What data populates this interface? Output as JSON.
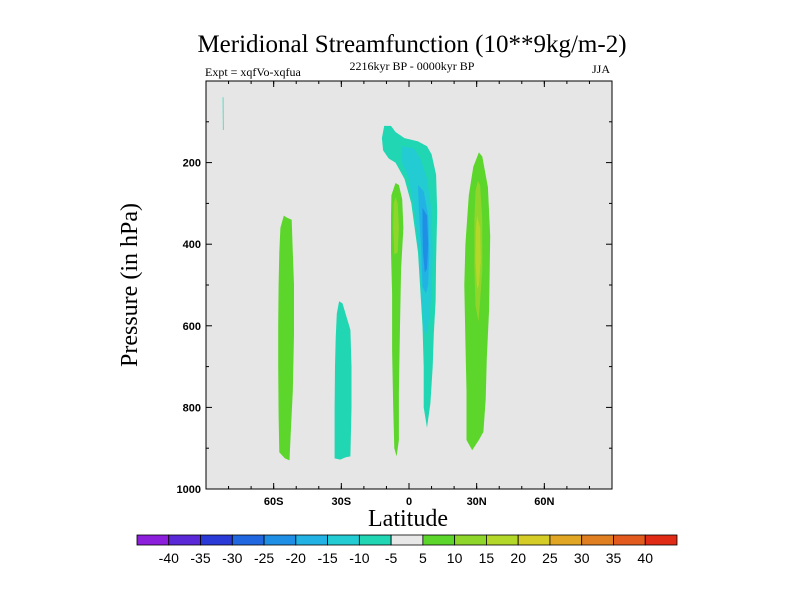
{
  "chart_data": {
    "type": "heatmap",
    "title": "Meridional Streamfunction (10**9kg/m-2)",
    "subtitle_left": "Expt = xqfVo-xqfua",
    "subtitle_center": "2216kyr BP - 0000kyr BP",
    "subtitle_right": "JJA",
    "xlabel": "Latitude",
    "ylabel": "Pressure (in hPa)",
    "xlim": [
      -90,
      90
    ],
    "ylim": [
      1000,
      0
    ],
    "x_ticks": [
      {
        "value": -60,
        "label": "60S"
      },
      {
        "value": -30,
        "label": "30S"
      },
      {
        "value": 0,
        "label": "0"
      },
      {
        "value": 30,
        "label": "30N"
      },
      {
        "value": 60,
        "label": "60N"
      }
    ],
    "y_ticks": [
      {
        "value": 200,
        "label": "200"
      },
      {
        "value": 400,
        "label": "400"
      },
      {
        "value": 600,
        "label": "600"
      },
      {
        "value": 800,
        "label": "800"
      },
      {
        "value": 1000,
        "label": "1000"
      }
    ],
    "colorbar": {
      "labels": [
        "-40",
        "-35",
        "-30",
        "-25",
        "-20",
        "-15",
        "-10",
        "-5",
        "5",
        "10",
        "15",
        "20",
        "25",
        "30",
        "35",
        "40"
      ],
      "colors": [
        "#8c1fdc",
        "#5a28d6",
        "#2a3ad6",
        "#2167e0",
        "#1f8fe6",
        "#22b3e4",
        "#22ccd2",
        "#21d6b2",
        "#e8e8e8",
        "#5cd62b",
        "#8fd62b",
        "#b4d82a",
        "#d6cc27",
        "#e0a624",
        "#e07f22",
        "#e25a1e",
        "#e02b16"
      ]
    },
    "contour_regions": [
      {
        "name": "cell-60S-positive",
        "level": "5 to 10",
        "color": "#5cd62b",
        "outline": [
          [
            -55.5,
            330
          ],
          [
            -54,
            335
          ],
          [
            -52,
            340
          ],
          [
            -51.5,
            420
          ],
          [
            -51,
            500
          ],
          [
            -51,
            620
          ],
          [
            -51.5,
            760
          ],
          [
            -52.5,
            870
          ],
          [
            -53,
            930
          ],
          [
            -55,
            925
          ],
          [
            -57.5,
            910
          ],
          [
            -57.8,
            820
          ],
          [
            -58,
            700
          ],
          [
            -58,
            600
          ],
          [
            -57.8,
            500
          ],
          [
            -57.5,
            420
          ],
          [
            -57,
            360
          ]
        ]
      },
      {
        "name": "cell-30S-negative",
        "level": "-5 to -10",
        "color": "#21d6b2",
        "outline": [
          [
            -31,
            540
          ],
          [
            -29.5,
            545
          ],
          [
            -26,
            610
          ],
          [
            -25.5,
            700
          ],
          [
            -25.5,
            800
          ],
          [
            -26,
            920
          ],
          [
            -28,
            922
          ],
          [
            -30.5,
            928
          ],
          [
            -33,
            925
          ],
          [
            -33,
            800
          ],
          [
            -32.8,
            700
          ],
          [
            -32.5,
            630
          ],
          [
            -32,
            570
          ]
        ]
      },
      {
        "name": "cell-5S-positive",
        "level": "5 to 10",
        "color": "#5cd62b",
        "outline": [
          [
            -6,
            250
          ],
          [
            -4.5,
            255
          ],
          [
            -3,
            290
          ],
          [
            -2.5,
            360
          ],
          [
            -3.5,
            460
          ],
          [
            -4,
            600
          ],
          [
            -4.5,
            760
          ],
          [
            -4.5,
            880
          ],
          [
            -5.5,
            920
          ],
          [
            -6.5,
            900
          ],
          [
            -7,
            800
          ],
          [
            -7.5,
            660
          ],
          [
            -7.5,
            520
          ],
          [
            -8,
            420
          ],
          [
            -8,
            330
          ],
          [
            -7.8,
            280
          ]
        ]
      },
      {
        "name": "cell-5S-positive-core",
        "level": "10 to 15",
        "color": "#8fd62b",
        "outline": [
          [
            -6,
            285
          ],
          [
            -5,
            300
          ],
          [
            -4.5,
            360
          ],
          [
            -5,
            420
          ],
          [
            -6.5,
            425
          ],
          [
            -7,
            360
          ],
          [
            -6.8,
            300
          ]
        ]
      },
      {
        "name": "cell-eq-negative",
        "level": "-5 to -10",
        "color": "#21d6b2",
        "outline": [
          [
            -11,
            110
          ],
          [
            -8,
            110
          ],
          [
            -6,
            125
          ],
          [
            -2,
            140
          ],
          [
            4,
            148
          ],
          [
            8,
            160
          ],
          [
            10,
            180
          ],
          [
            12,
            230
          ],
          [
            12.5,
            320
          ],
          [
            12,
            440
          ],
          [
            11.8,
            540
          ],
          [
            11,
            620
          ],
          [
            10.5,
            700
          ],
          [
            9.5,
            790
          ],
          [
            8,
            850
          ],
          [
            6.5,
            800
          ],
          [
            6.5,
            700
          ],
          [
            6,
            600
          ],
          [
            4,
            420
          ],
          [
            1,
            300
          ],
          [
            -2,
            240
          ],
          [
            -6,
            200
          ],
          [
            -9,
            190
          ],
          [
            -11.5,
            170
          ],
          [
            -12,
            140
          ]
        ]
      },
      {
        "name": "cell-eq-negative-ring",
        "level": "-10 to -15",
        "color": "#22ccd2",
        "outline": [
          [
            -3,
            160
          ],
          [
            2,
            165
          ],
          [
            5,
            190
          ],
          [
            8,
            240
          ],
          [
            10,
            320
          ],
          [
            10.5,
            420
          ],
          [
            10,
            520
          ],
          [
            9,
            580
          ],
          [
            8,
            620
          ],
          [
            6.5,
            610
          ],
          [
            5.5,
            520
          ],
          [
            4.5,
            420
          ],
          [
            2.5,
            320
          ],
          [
            0,
            240
          ],
          [
            -3,
            200
          ]
        ]
      },
      {
        "name": "cell-eq-negative-inner",
        "level": "-15 to -20",
        "color": "#22b3e4",
        "outline": [
          [
            4,
            255
          ],
          [
            6.5,
            270
          ],
          [
            8.5,
            330
          ],
          [
            9,
            420
          ],
          [
            8.5,
            500
          ],
          [
            7.5,
            520
          ],
          [
            6,
            505
          ],
          [
            5.5,
            420
          ],
          [
            4.5,
            330
          ]
        ]
      },
      {
        "name": "cell-eq-negative-core",
        "level": "-20 to -25",
        "color": "#1f8fe6",
        "outline": [
          [
            6,
            310
          ],
          [
            8,
            330
          ],
          [
            8.5,
            400
          ],
          [
            8,
            460
          ],
          [
            7,
            470
          ],
          [
            6.2,
            420
          ],
          [
            6,
            360
          ]
        ]
      },
      {
        "name": "cell-30N-positive",
        "level": "5 to 10",
        "color": "#5cd62b",
        "outline": [
          [
            31,
            175
          ],
          [
            32.5,
            185
          ],
          [
            35,
            260
          ],
          [
            36,
            380
          ],
          [
            35.5,
            560
          ],
          [
            34.5,
            680
          ],
          [
            34,
            780
          ],
          [
            33,
            860
          ],
          [
            31,
            880
          ],
          [
            28,
            905
          ],
          [
            25.5,
            880
          ],
          [
            25.5,
            760
          ],
          [
            25,
            640
          ],
          [
            24.5,
            500
          ],
          [
            25,
            400
          ],
          [
            26.5,
            280
          ],
          [
            28.5,
            210
          ]
        ]
      },
      {
        "name": "cell-30N-positive-core",
        "level": "10 to 15",
        "color": "#8fd62b",
        "outline": [
          [
            30.5,
            245
          ],
          [
            31.5,
            255
          ],
          [
            32.5,
            340
          ],
          [
            32.5,
            460
          ],
          [
            31.5,
            540
          ],
          [
            30.8,
            590
          ],
          [
            29.5,
            550
          ],
          [
            29,
            460
          ],
          [
            29,
            340
          ],
          [
            29.5,
            270
          ]
        ]
      },
      {
        "name": "cell-30N-positive-inner",
        "level": "15 to 20",
        "color": "#b4d82a",
        "outline": [
          [
            30.2,
            330
          ],
          [
            31.5,
            360
          ],
          [
            31.8,
            440
          ],
          [
            31,
            500
          ],
          [
            30.2,
            510
          ],
          [
            29.5,
            440
          ],
          [
            29.6,
            370
          ]
        ]
      },
      {
        "name": "sliver-far-south",
        "level": "-5 to -10",
        "color": "#21d6b2",
        "outline": [
          [
            -82.6,
            40
          ],
          [
            -82.3,
            40
          ],
          [
            -82.2,
            120
          ],
          [
            -82.5,
            120
          ]
        ]
      }
    ]
  }
}
